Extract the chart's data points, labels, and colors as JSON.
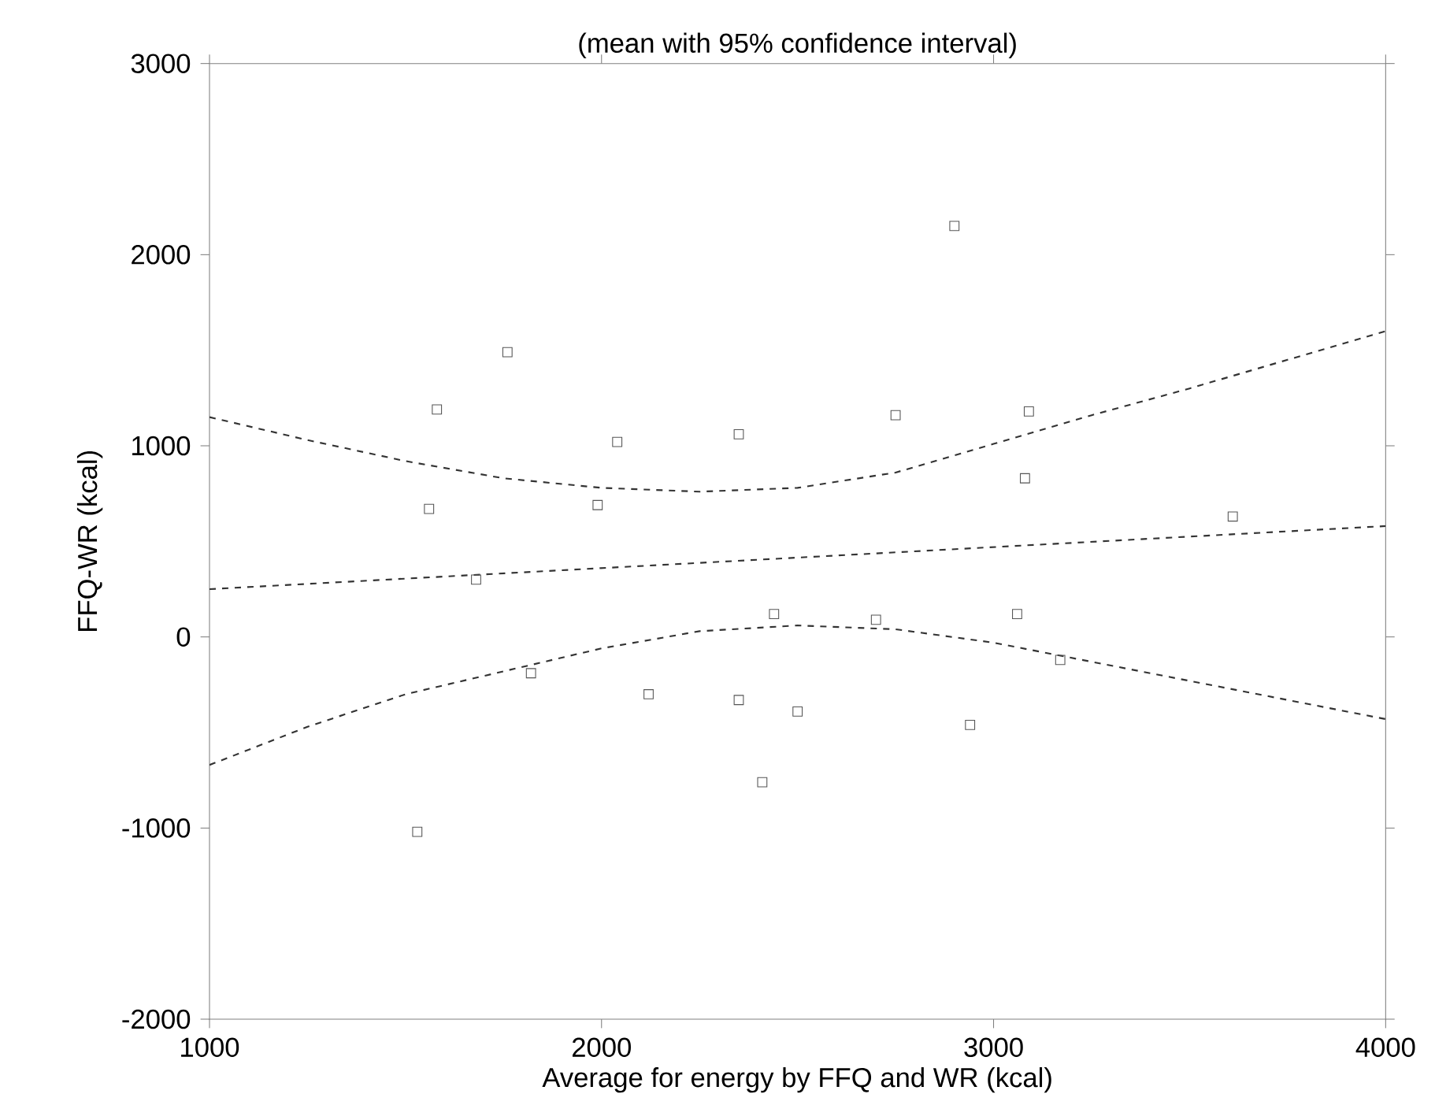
{
  "chart_data": {
    "type": "scatter",
    "title": "(mean with 95% confidence interval)",
    "xlabel": "Average for energy by FFQ and WR (kcal)",
    "ylabel": "FFQ-WR (kcal)",
    "xlim": [
      1000,
      4000
    ],
    "ylim": [
      -2000,
      3000
    ],
    "xticks": [
      1000,
      2000,
      3000,
      4000
    ],
    "yticks": [
      -2000,
      -1000,
      0,
      1000,
      2000,
      3000
    ],
    "grid": false,
    "series": [
      {
        "marker": "square",
        "color": "#555555",
        "x": [
          1760,
          1580,
          2040,
          2350,
          1560,
          1990,
          1680,
          2900,
          2750,
          3090,
          3080,
          3610,
          1530,
          1820,
          2120,
          2350,
          2410,
          2500,
          2440,
          2940,
          3060,
          3170,
          2700
        ],
        "values": [
          1490,
          1190,
          1020,
          1060,
          670,
          690,
          300,
          2150,
          1160,
          1180,
          830,
          630,
          -1020,
          -190,
          -300,
          -330,
          -760,
          -390,
          120,
          -460,
          120,
          -120,
          90
        ]
      },
      {
        "type": "line",
        "marker": "none",
        "line_style": "dashed",
        "color": "#333333",
        "x": [
          1000,
          4000
        ],
        "values": [
          250,
          580
        ]
      },
      {
        "type": "line",
        "marker": "none",
        "line_style": "dashed",
        "color": "#333333",
        "x": [
          1000,
          1250,
          1500,
          1750,
          2000,
          2250,
          2500,
          2750,
          3000,
          3250,
          3500,
          3750,
          4000
        ],
        "values": [
          1150,
          1030,
          920,
          830,
          780,
          760,
          780,
          860,
          1010,
          1160,
          1300,
          1450,
          1600
        ]
      },
      {
        "type": "line",
        "marker": "none",
        "line_style": "dashed",
        "color": "#333333",
        "x": [
          1000,
          1250,
          1500,
          1750,
          2000,
          2250,
          2500,
          2750,
          3000,
          3250,
          3500,
          3750,
          4000
        ],
        "values": [
          -670,
          -470,
          -300,
          -180,
          -60,
          30,
          60,
          40,
          -30,
          -130,
          -230,
          -330,
          -430
        ]
      }
    ]
  }
}
